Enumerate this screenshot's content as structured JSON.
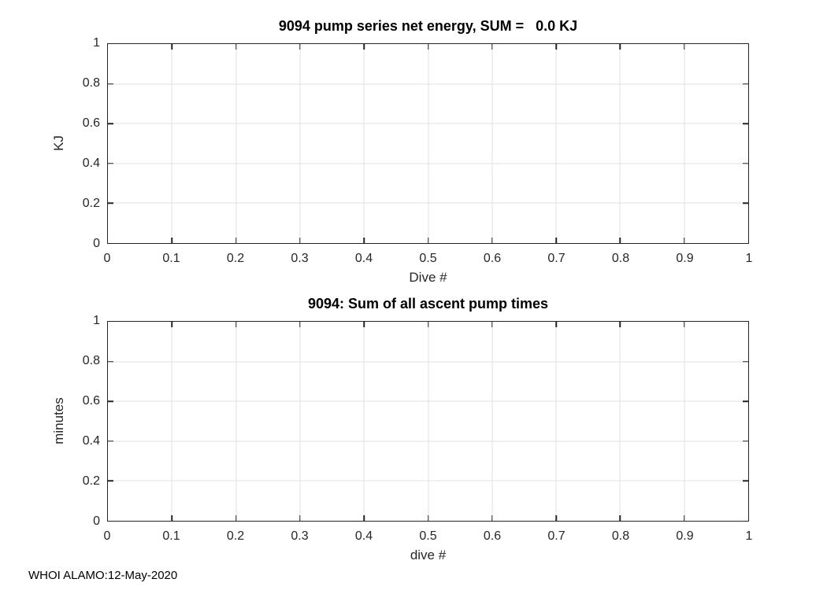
{
  "figure": {
    "background": "#ffffff",
    "footer": "WHOI ALAMO:12-May-2020",
    "colors": {
      "axis": "#242424",
      "grid": "#e0e0e0",
      "tick_text": "#262626",
      "title_text": "#000000"
    }
  },
  "chart_data": [
    {
      "type": "line",
      "title": "9094 pump series net energy, SUM =   0.0 KJ",
      "xlabel": "Dive #",
      "ylabel": "KJ",
      "xlim": [
        0,
        1
      ],
      "ylim": [
        0,
        1
      ],
      "xticks": [
        0,
        0.1,
        0.2,
        0.3,
        0.4,
        0.5,
        0.6,
        0.7,
        0.8,
        0.9,
        1
      ],
      "xtick_labels": [
        "0",
        "0.1",
        "0.2",
        "0.3",
        "0.4",
        "0.5",
        "0.6",
        "0.7",
        "0.8",
        "0.9",
        "1"
      ],
      "yticks": [
        0,
        0.2,
        0.4,
        0.6,
        0.8,
        1
      ],
      "ytick_labels": [
        "0",
        "0.2",
        "0.4",
        "0.6",
        "0.8",
        "1"
      ],
      "grid": true,
      "legend": null,
      "series": []
    },
    {
      "type": "line",
      "title": "9094: Sum of all ascent pump times",
      "xlabel": "dive #",
      "ylabel": "minutes",
      "xlim": [
        0,
        1
      ],
      "ylim": [
        0,
        1
      ],
      "xticks": [
        0,
        0.1,
        0.2,
        0.3,
        0.4,
        0.5,
        0.6,
        0.7,
        0.8,
        0.9,
        1
      ],
      "xtick_labels": [
        "0",
        "0.1",
        "0.2",
        "0.3",
        "0.4",
        "0.5",
        "0.6",
        "0.7",
        "0.8",
        "0.9",
        "1"
      ],
      "yticks": [
        0,
        0.2,
        0.4,
        0.6,
        0.8,
        1
      ],
      "ytick_labels": [
        "0",
        "0.2",
        "0.4",
        "0.6",
        "0.8",
        "1"
      ],
      "grid": true,
      "legend": null,
      "series": []
    }
  ]
}
